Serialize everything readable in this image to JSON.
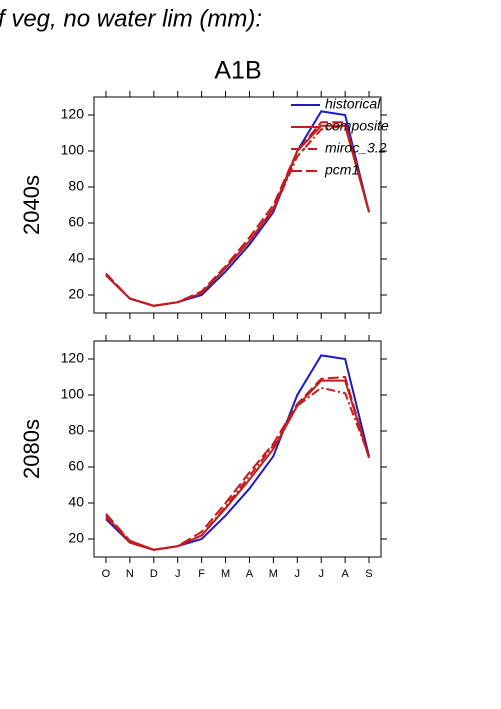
{
  "title": "f veg, no water lim (mm):",
  "subtitle": "A1B",
  "chart_data": [
    {
      "type": "line",
      "ylabel": "2040s",
      "ylim": [
        10,
        130
      ],
      "yticks": [
        20,
        40,
        60,
        80,
        100,
        120
      ],
      "legend": "upper right",
      "series": [
        {
          "name": "historical",
          "color": "#1c1cc4",
          "dash": "solid",
          "values": [
            31,
            18,
            14,
            16,
            20,
            33,
            48,
            66,
            100,
            122,
            120,
            66
          ]
        },
        {
          "name": "composite",
          "color": "#c41c1c",
          "dash": "solid",
          "values": [
            31,
            18,
            14,
            16,
            21,
            35,
            50,
            68,
            100,
            114,
            114,
            66
          ]
        },
        {
          "name": "miroc_3.2",
          "color": "#c41c1c",
          "dash": "dashdot",
          "values": [
            31,
            18,
            14,
            16,
            21,
            35,
            50,
            67,
            97,
            112,
            114,
            66
          ]
        },
        {
          "name": "pcm1",
          "color": "#c41c1c",
          "dash": "longdash",
          "values": [
            32,
            18,
            14,
            16,
            22,
            36,
            52,
            70,
            100,
            116,
            116,
            66
          ]
        }
      ]
    },
    {
      "type": "line",
      "ylabel": "2080s",
      "ylim": [
        10,
        130
      ],
      "yticks": [
        20,
        40,
        60,
        80,
        100,
        120
      ],
      "categories": [
        "O",
        "N",
        "D",
        "J",
        "F",
        "M",
        "A",
        "M",
        "J",
        "J",
        "A",
        "S"
      ],
      "series": [
        {
          "color": "#1c1cc4",
          "dash": "solid",
          "values": [
            31,
            18,
            14,
            16,
            20,
            33,
            48,
            66,
            100,
            122,
            120,
            66
          ]
        },
        {
          "color": "#c41c1c",
          "dash": "solid",
          "values": [
            33,
            18,
            14,
            16,
            22,
            37,
            53,
            70,
            94,
            108,
            108,
            65
          ]
        },
        {
          "color": "#c41c1c",
          "dash": "dashdot",
          "values": [
            32,
            19,
            14,
            16,
            22,
            38,
            55,
            72,
            94,
            104,
            101,
            66
          ]
        },
        {
          "color": "#c41c1c",
          "dash": "longdash",
          "values": [
            34,
            19,
            14,
            16,
            24,
            40,
            57,
            73,
            95,
            109,
            110,
            65
          ]
        }
      ]
    }
  ]
}
